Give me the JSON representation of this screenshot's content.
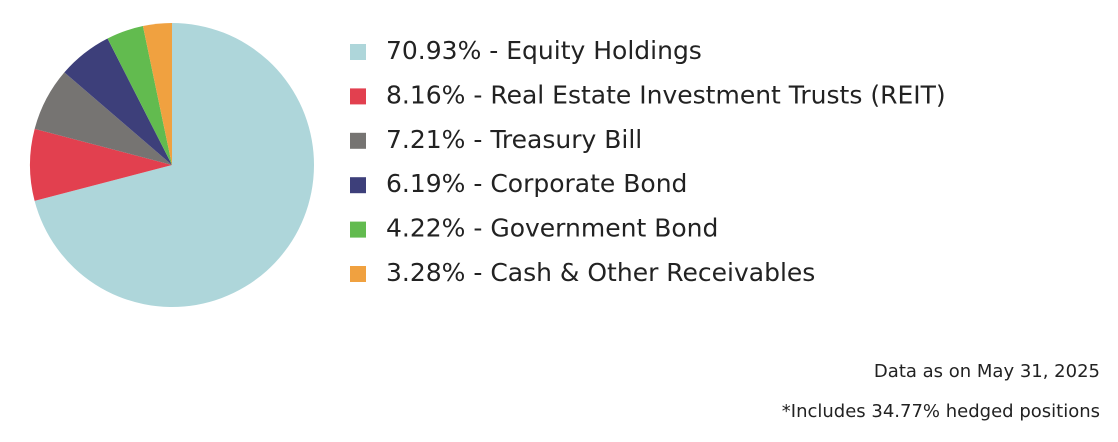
{
  "chart_data": {
    "type": "pie",
    "labels": [
      "70.93% - Equity Holdings",
      "8.16% - Real Estate Investment Trusts (REIT)",
      "7.21% - Treasury Bill",
      "6.19% - Corporate Bond",
      "4.22% - Government Bond",
      "3.28% - Cash & Other Receivables"
    ],
    "values": [
      70.93,
      8.16,
      7.21,
      6.19,
      4.22,
      3.28
    ],
    "colors": [
      "#aed6da",
      "#e2404f",
      "#767472",
      "#3d3f7a",
      "#62bb4f",
      "#f0a140"
    ],
    "notes": [
      "Data as on May 31, 2025",
      "*Includes 34.77% hedged positions"
    ]
  }
}
